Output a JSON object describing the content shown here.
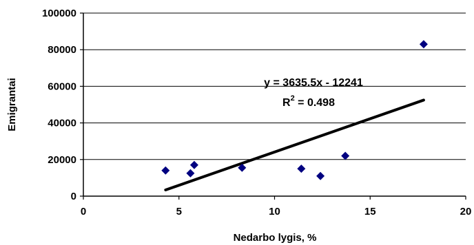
{
  "chart_data": {
    "type": "scatter",
    "xlabel": "Nedarbo lygis, %",
    "ylabel": "Emigrantai",
    "xlim": [
      0,
      20
    ],
    "ylim": [
      0,
      100000
    ],
    "x_ticks": [
      0,
      5,
      10,
      15,
      20
    ],
    "y_ticks": [
      0,
      20000,
      40000,
      60000,
      80000,
      100000
    ],
    "x_tick_labels": [
      "0",
      "5",
      "10",
      "15",
      "20"
    ],
    "y_tick_labels": [
      "0",
      "20000",
      "40000",
      "60000",
      "80000",
      "100000"
    ],
    "grid": "horizontal",
    "points": [
      {
        "x": 4.3,
        "y": 14000
      },
      {
        "x": 5.6,
        "y": 12500
      },
      {
        "x": 5.8,
        "y": 17000
      },
      {
        "x": 8.3,
        "y": 15500
      },
      {
        "x": 11.4,
        "y": 15000
      },
      {
        "x": 12.4,
        "y": 11000
      },
      {
        "x": 13.7,
        "y": 22000
      },
      {
        "x": 17.8,
        "y": 83000
      }
    ],
    "marker_color": "#000080",
    "trendline": {
      "slope": 3635.5,
      "intercept": -12241,
      "x_range": [
        4.3,
        17.8
      ],
      "color": "#000000",
      "equation_label": "y = 3635.5x - 12241",
      "r2_label_main": "R",
      "r2_label_sup": "2",
      "r2_label_rest": " = 0.498"
    }
  }
}
